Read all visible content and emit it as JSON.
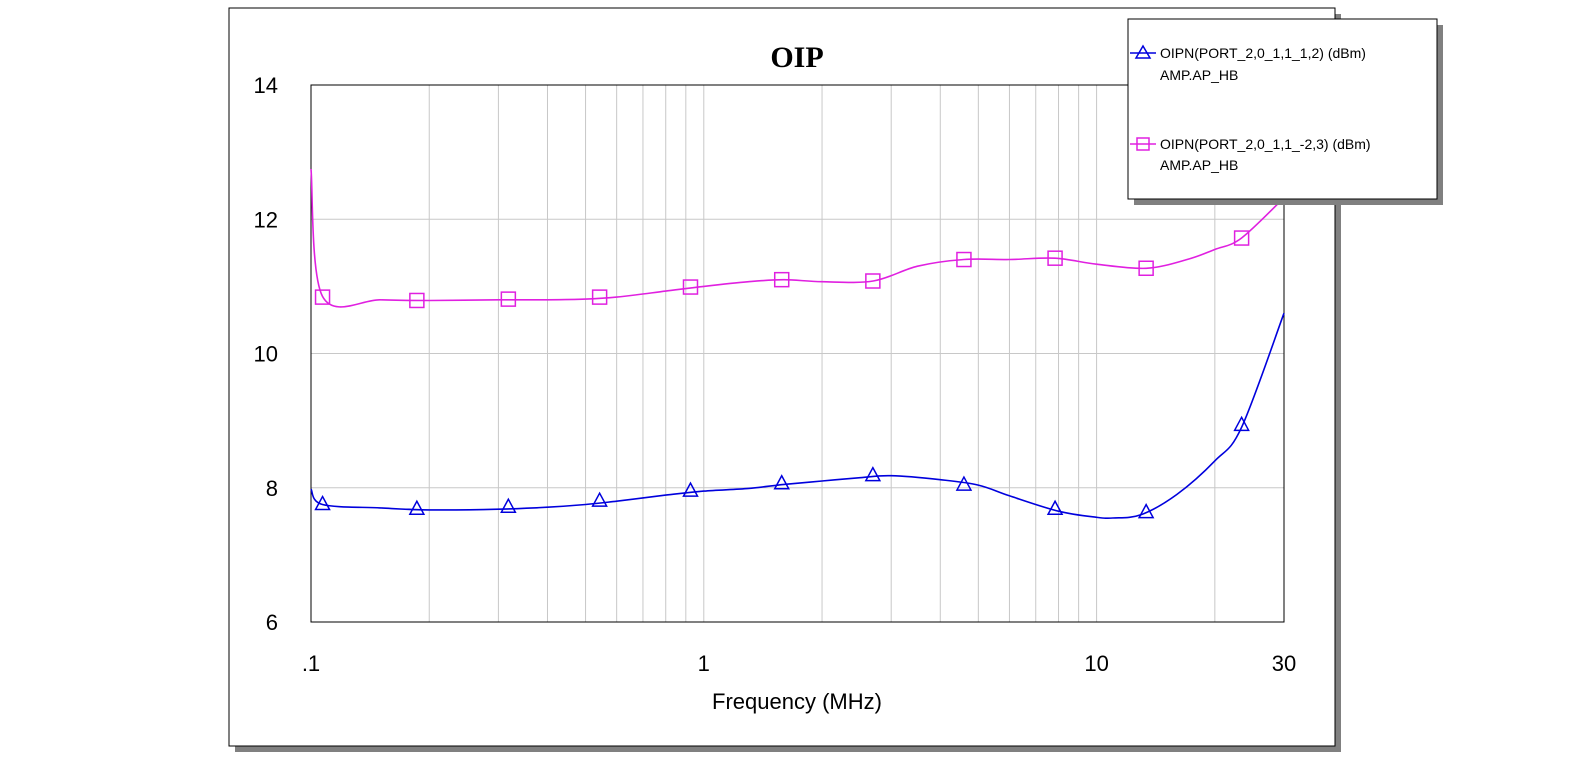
{
  "chart_data": {
    "type": "line",
    "title": "OIP",
    "xlabel": "Frequency (MHz)",
    "ylabel": "",
    "x_scale": "log",
    "xlim": [
      0.1,
      30
    ],
    "ylim": [
      6,
      14
    ],
    "x_ticks": [
      0.1,
      1,
      10,
      30
    ],
    "x_tick_labels": [
      ".1",
      "1",
      "10",
      "30"
    ],
    "y_ticks": [
      6,
      8,
      10,
      12,
      14
    ],
    "y_tick_labels": [
      "6",
      "8",
      "10",
      "12",
      "14"
    ],
    "grid": true,
    "legend_position": "top-right",
    "series": [
      {
        "name": "OIPN(PORT_2,0_1,1_1,2) (dBm)",
        "subname": "AMP.AP_HB",
        "color": "#0000dd",
        "marker": "triangle",
        "x": [
          0.1,
          0.107,
          0.15,
          0.2,
          0.3,
          0.4,
          0.5,
          0.6,
          0.8,
          1.0,
          1.3,
          1.6,
          2.0,
          2.5,
          3.0,
          4.0,
          5.0,
          6.0,
          8.0,
          10.0,
          11.0,
          13.0,
          16.0,
          20.0,
          23.4,
          30.0
        ],
        "y": [
          7.98,
          7.75,
          7.7,
          7.67,
          7.68,
          7.71,
          7.75,
          7.8,
          7.89,
          7.95,
          7.99,
          8.05,
          8.1,
          8.15,
          8.18,
          8.12,
          8.04,
          7.88,
          7.65,
          7.56,
          7.55,
          7.6,
          7.9,
          8.4,
          8.9,
          10.6
        ],
        "marker_x": [
          0.107,
          0.186,
          0.318,
          0.543,
          0.925,
          1.579,
          2.694,
          4.595,
          7.84,
          13.37,
          23.4
        ],
        "marker_y": [
          7.75,
          7.68,
          7.71,
          7.8,
          7.95,
          8.06,
          8.18,
          8.04,
          7.68,
          7.63,
          8.93
        ]
      },
      {
        "name": "OIPN(PORT_2,0_1,1_-2,3) (dBm)",
        "subname": "AMP.AP_HB",
        "color": "#e020e0",
        "marker": "square",
        "x": [
          0.1,
          0.107,
          0.15,
          0.2,
          0.3,
          0.4,
          0.5,
          0.6,
          0.8,
          1.0,
          1.3,
          1.6,
          2.0,
          2.7,
          3.5,
          4.595,
          6.0,
          7.84,
          10.0,
          13.37,
          17.0,
          20.0,
          23.4,
          30.0
        ],
        "y": [
          12.75,
          10.85,
          10.8,
          10.79,
          10.8,
          10.8,
          10.81,
          10.84,
          10.93,
          11.0,
          11.07,
          11.1,
          11.07,
          11.08,
          11.3,
          11.4,
          11.4,
          11.42,
          11.33,
          11.27,
          11.4,
          11.55,
          11.72,
          12.32
        ],
        "marker_x": [
          0.107,
          0.186,
          0.318,
          0.543,
          0.925,
          1.579,
          2.694,
          4.595,
          7.84,
          13.37,
          23.4
        ],
        "marker_y": [
          10.84,
          10.79,
          10.81,
          10.84,
          10.99,
          11.1,
          11.08,
          11.4,
          11.42,
          11.27,
          11.72
        ]
      }
    ]
  }
}
